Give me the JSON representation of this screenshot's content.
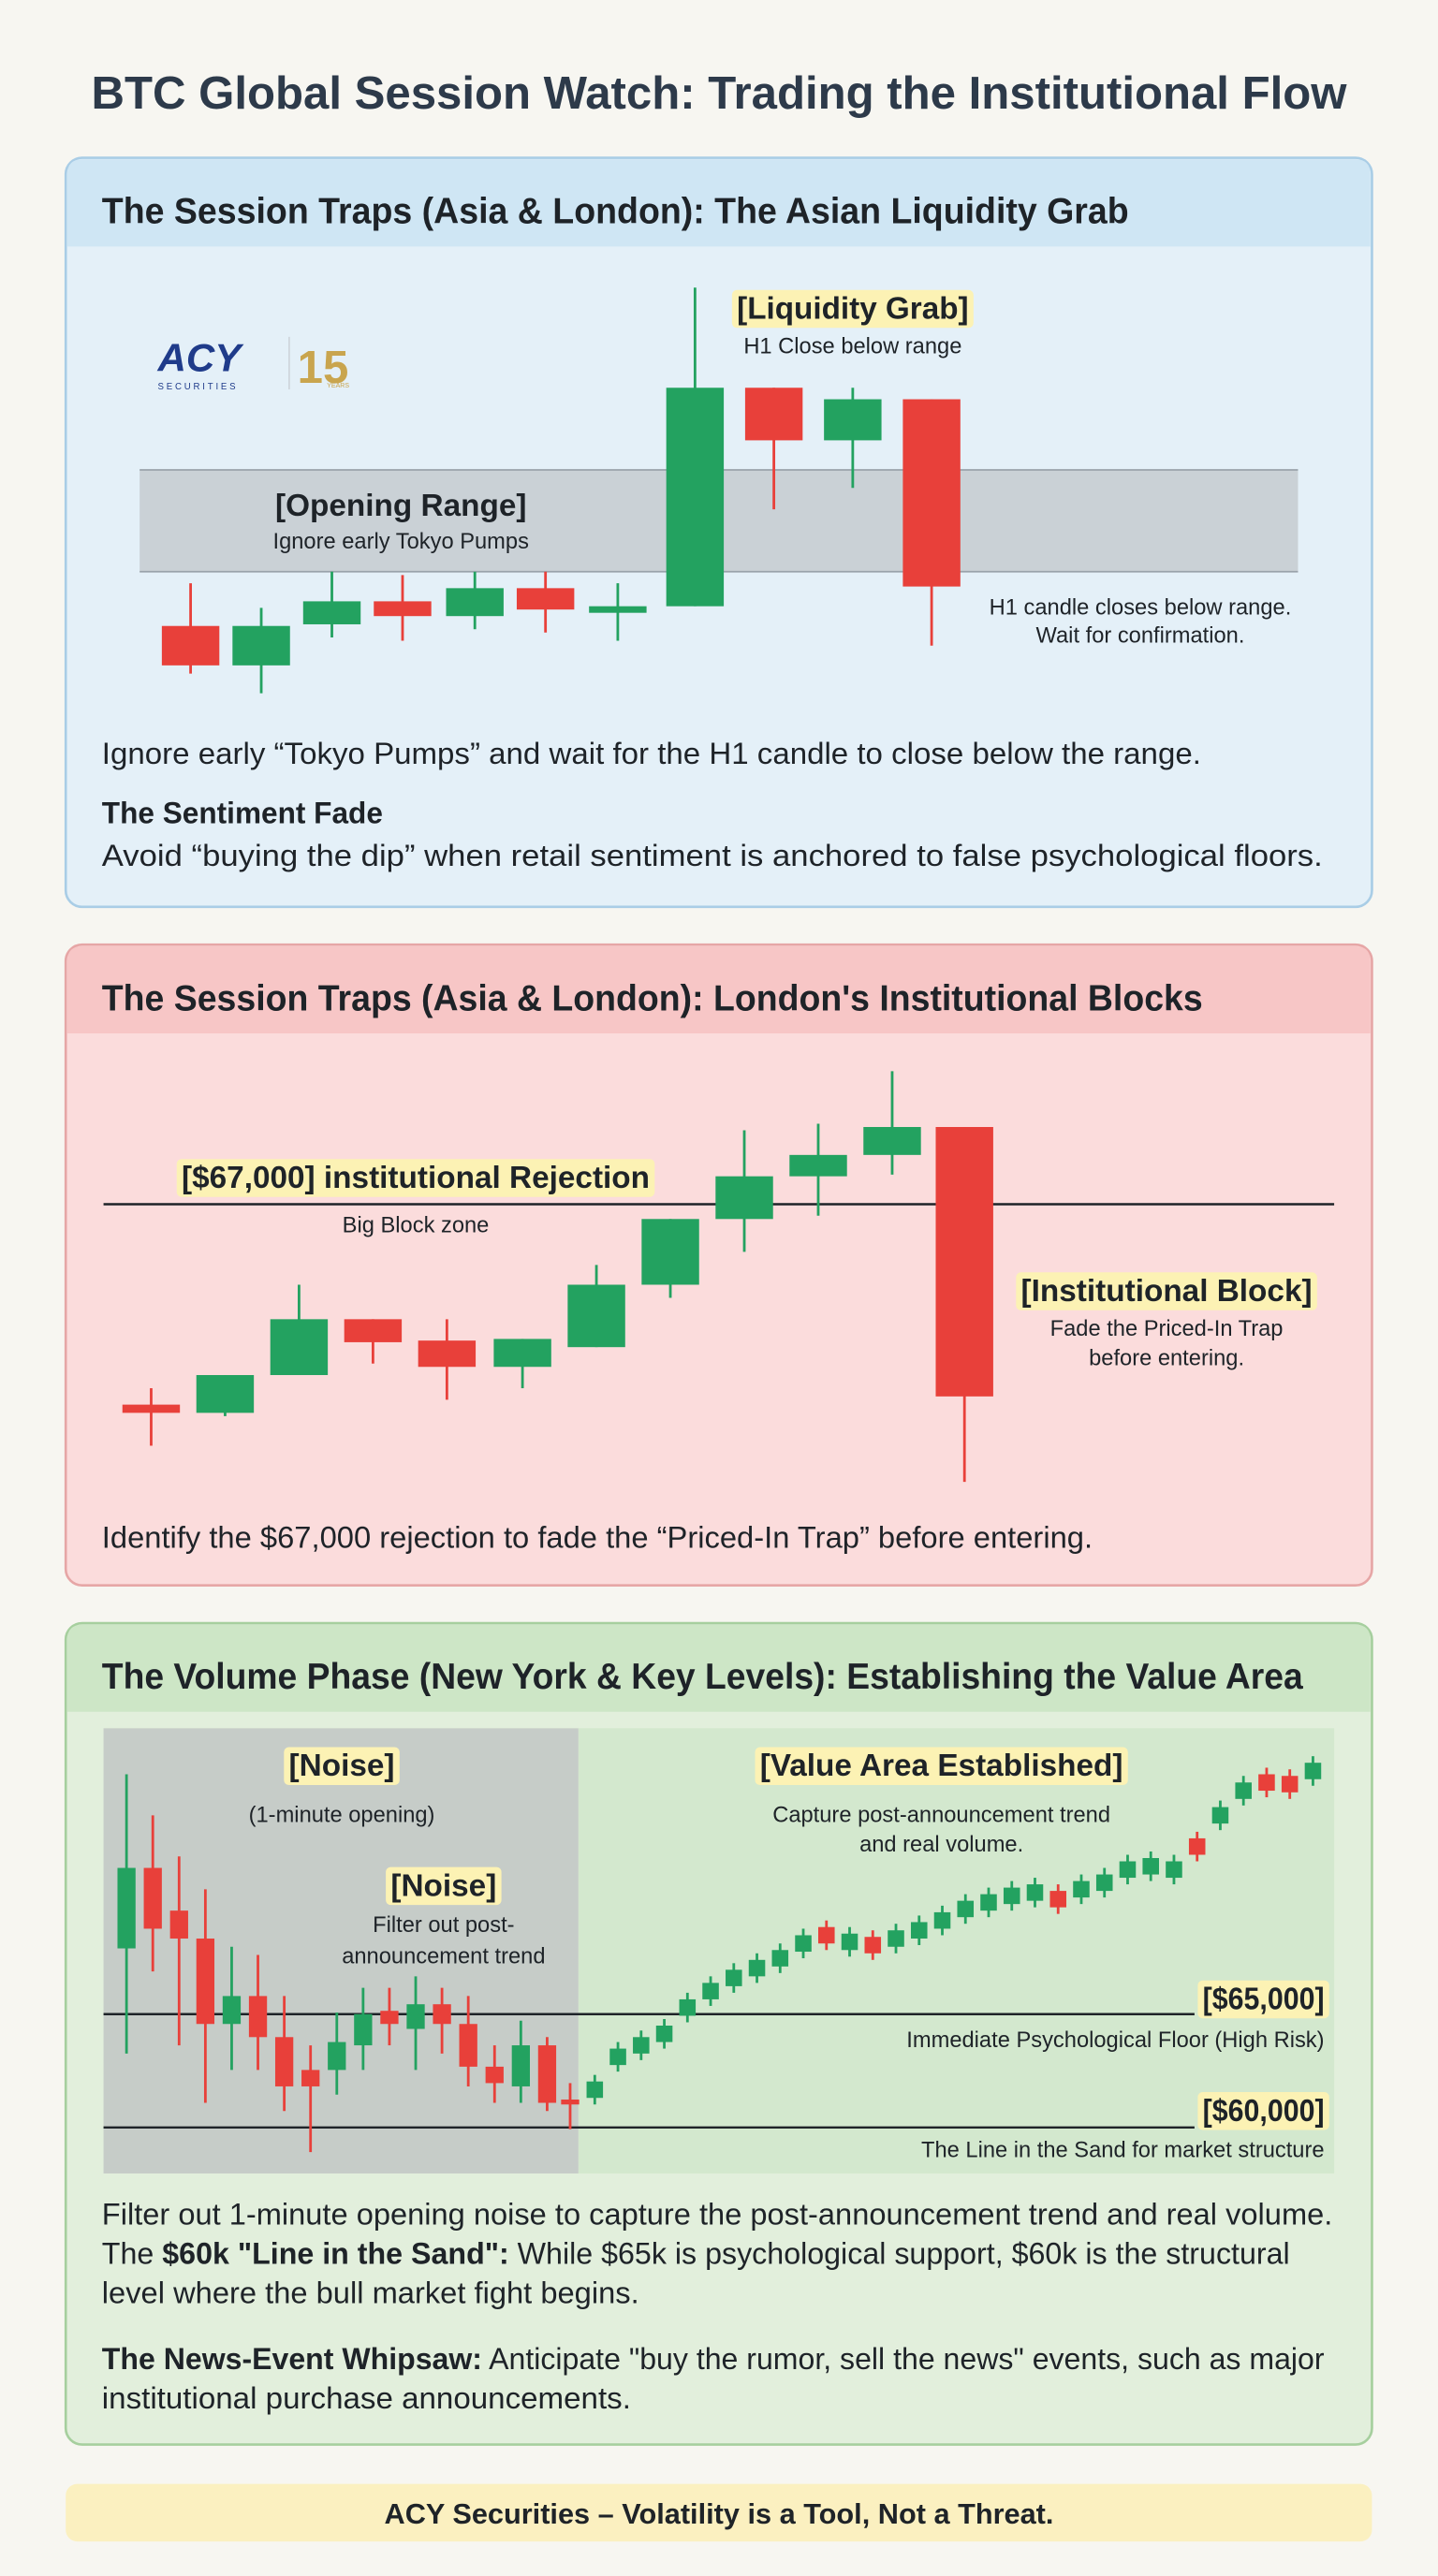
{
  "title": "BTC Global Session Watch: Trading the Institutional Flow",
  "sessions": [
    {
      "heading": "The Session Traps (Asia & London): The Asian Liquidity Grab",
      "logo": {
        "brand": "ACY",
        "sub": "SECURITIES",
        "years": "15",
        "years_label": "YEARS"
      },
      "annotations": [
        {
          "title": "[Liquidity Grab]",
          "lines": [
            "H1 Close below range"
          ]
        },
        {
          "title": "[Opening Range]",
          "lines": [
            "Ignore early Tokyo Pumps"
          ]
        },
        {
          "lines": [
            "H1 candle closes below range.",
            "Wait for confirmation."
          ]
        }
      ],
      "body_lines": [
        [
          {
            "text": "Ignore early “Tokyo Pumps” and wait for the H1 candle to close below the range."
          }
        ],
        [
          {
            "text": "The Sentiment Fade",
            "bold": true
          }
        ],
        [
          {
            "text": "Avoid “buying the dip” when retail sentiment is anchored to false psychological floors."
          }
        ]
      ]
    },
    {
      "heading": "The Session Traps (Asia & London): London's Institutional Blocks",
      "annotations": [
        {
          "title": "[$67,000] institutional Rejection",
          "lines": [
            "Big Block zone"
          ]
        },
        {
          "title": "[Institutional Block]",
          "lines": [
            "Fade the Priced-In Trap",
            "before entering."
          ]
        }
      ],
      "body_lines": [
        [
          {
            "text": "Identify the $67,000 rejection to fade the “Priced-In Trap” before entering."
          }
        ]
      ]
    },
    {
      "heading": "The Volume Phase (New York & Key Levels): Establishing the Value Area",
      "annotations": [
        {
          "title": "[Noise]",
          "lines": [
            "(1-minute opening)"
          ]
        },
        {
          "title": "[Noise]",
          "lines": [
            "Filter out post-",
            "announcement trend"
          ]
        },
        {
          "title": "[Value Area Established]",
          "lines": [
            "Capture post-announcement trend",
            "and real volume."
          ]
        },
        {
          "title": "[$65,000]",
          "lines": [
            "Immediate Psychological Floor (High Risk)"
          ]
        },
        {
          "title": "[$60,000]",
          "lines": [
            "The Line in the Sand for market structure"
          ]
        }
      ],
      "body_lines": [
        [
          {
            "text": "Filter out 1-minute opening noise to capture the post-announcement trend and real volume."
          }
        ],
        [
          {
            "text": "The "
          },
          {
            "text": "$60k \"Line in the Sand\":",
            "bold": true
          },
          {
            "text": " While $65k is psychological support, $60k is the structural"
          }
        ],
        [
          {
            "text": "level where the bull market fight begins."
          }
        ],
        [
          {
            "text": "The News-Event Whipsaw:",
            "bold": true
          },
          {
            "text": " Anticipate \"buy the rumor, sell the news\" events, such as major"
          }
        ],
        [
          {
            "text": "institutional purchase announcements."
          }
        ]
      ]
    }
  ],
  "footer": "ACY Securities – Volatility is a Tool, Not a Threat."
}
